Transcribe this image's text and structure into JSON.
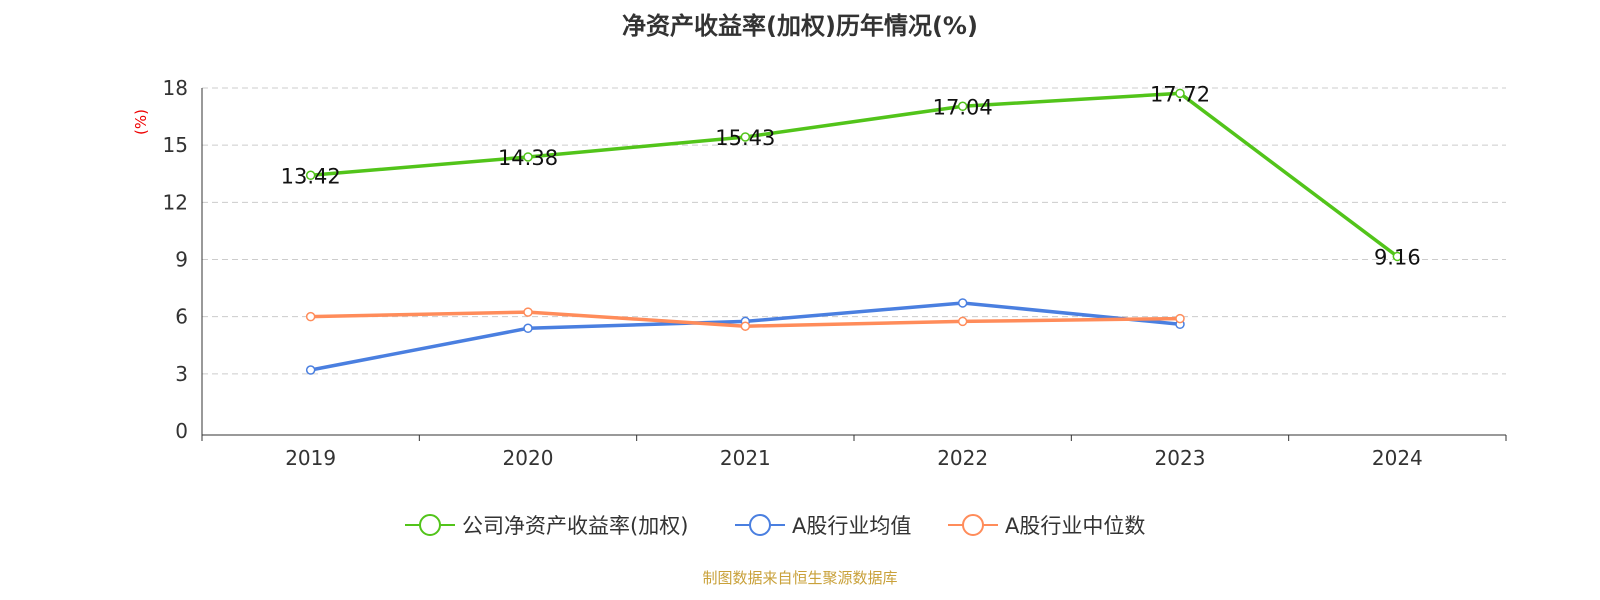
{
  "chart_data": {
    "type": "line",
    "title": "净资产收益率(加权)历年情况(%)",
    "ylabel": "(%)",
    "categories": [
      "2019",
      "2020",
      "2021",
      "2022",
      "2023",
      "2024"
    ],
    "ylim": [
      0,
      18
    ],
    "yticks": [
      0,
      3,
      6,
      9,
      12,
      15,
      18
    ],
    "grid": true,
    "legend_position": "bottom",
    "series": [
      {
        "name": "公司净资产收益率(加权)",
        "color": "#52c41a",
        "values": [
          13.42,
          14.38,
          15.43,
          17.04,
          17.72,
          9.16
        ],
        "labels": [
          "13.42",
          "14.38",
          "15.43",
          "17.04",
          "17.72",
          "9.16"
        ]
      },
      {
        "name": "A股行业均值",
        "color": "#4a7fe0",
        "values": [
          3.2,
          5.39,
          5.75,
          6.72,
          5.6,
          null
        ]
      },
      {
        "name": "A股行业中位数",
        "color": "#ff8c5a",
        "values": [
          6.0,
          6.24,
          5.5,
          5.75,
          5.9,
          null
        ]
      }
    ]
  },
  "source": "制图数据来自恒生聚源数据库"
}
